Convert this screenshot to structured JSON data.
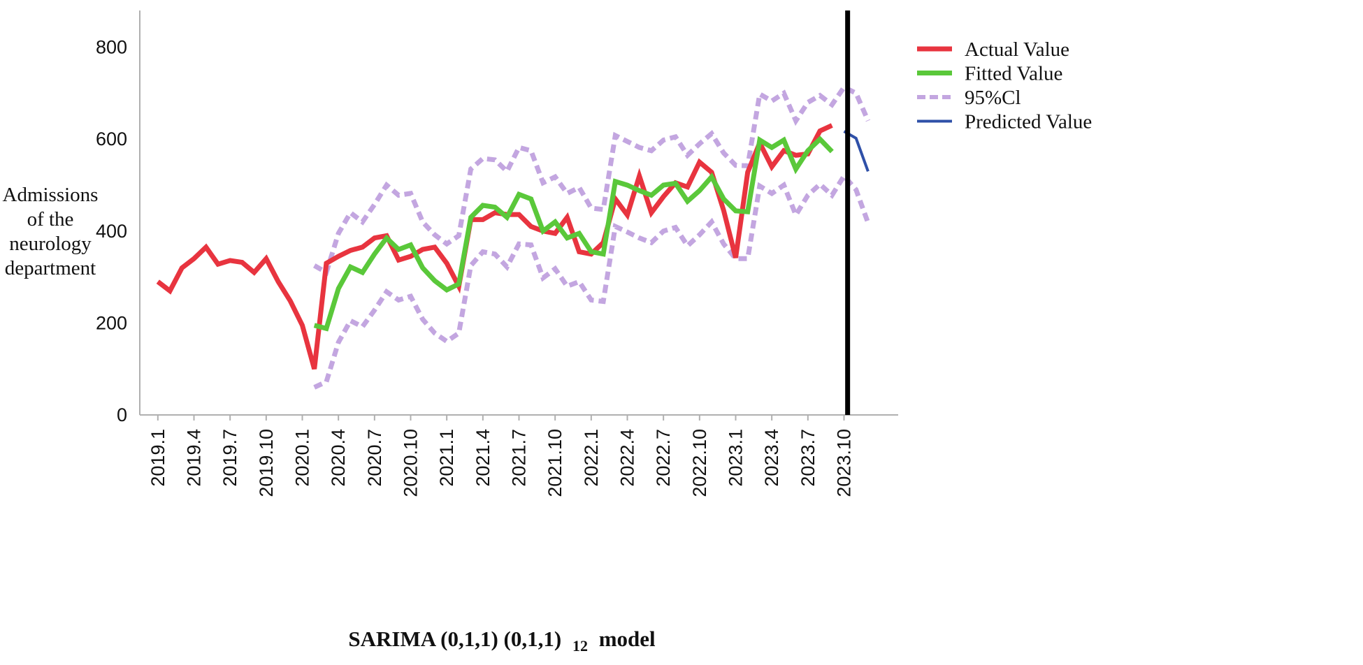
{
  "chart_data": {
    "type": "line",
    "xlabel": "SARIMA (0,1,1) (0,1,1) 12 model",
    "xlabel_parts": {
      "main": "SARIMA (0,1,1) (0,1,1)",
      "sub": "12",
      "tail": "model"
    },
    "ylabel_lines": [
      "Admissions",
      "of the",
      "neurology",
      "department"
    ],
    "ylim": [
      0,
      880
    ],
    "yticks": [
      0,
      200,
      400,
      600,
      800
    ],
    "tick_labels": [
      "2019.1",
      "2019.4",
      "2019.7",
      "2019.10",
      "2020.1",
      "2020.4",
      "2020.7",
      "2020.10",
      "2021.1",
      "2021.4",
      "2021.7",
      "2021.10",
      "2022.1",
      "2022.4",
      "2022.7",
      "2022.10",
      "2023.1",
      "2023.4",
      "2023.7",
      "2023.10"
    ],
    "tick_months": [
      0,
      3,
      6,
      9,
      12,
      15,
      18,
      21,
      24,
      27,
      30,
      33,
      36,
      39,
      42,
      45,
      48,
      51,
      54,
      57
    ],
    "x_range_months": [
      -1.5,
      61.5
    ],
    "forecast_start_month": 57.3,
    "legend_position": "top-right",
    "legend": [
      {
        "label": "Actual Value",
        "color": "#e8343f",
        "style": "solid"
      },
      {
        "label": "Fitted Value",
        "color": "#5ac83a",
        "style": "solid"
      },
      {
        "label": "95%Cl",
        "color": "#c3a6e0",
        "style": "dashed"
      },
      {
        "label": "Predicted Value",
        "color": "#2f50a8",
        "style": "solid"
      }
    ],
    "series": [
      {
        "name": "Actual Value",
        "color": "#e8343f",
        "start_month": 0,
        "values": [
          290,
          270,
          320,
          340,
          365,
          328,
          336,
          332,
          310,
          340,
          290,
          248,
          195,
          100,
          330,
          345,
          358,
          365,
          385,
          390,
          337,
          345,
          360,
          365,
          330,
          280,
          425,
          425,
          440,
          436,
          436,
          410,
          400,
          395,
          430,
          355,
          350,
          375,
          470,
          435,
          520,
          440,
          475,
          505,
          496,
          550,
          528,
          445,
          342,
          528,
          592,
          540,
          575,
          565,
          568,
          618,
          630
        ]
      },
      {
        "name": "Fitted Value",
        "color": "#5ac83a",
        "start_month": 13,
        "values": [
          195,
          188,
          275,
          322,
          310,
          350,
          385,
          360,
          370,
          320,
          292,
          272,
          285,
          430,
          456,
          452,
          430,
          480,
          470,
          400,
          420,
          385,
          395,
          355,
          350,
          508,
          500,
          488,
          478,
          500,
          504,
          465,
          488,
          518,
          470,
          444,
          442,
          598,
          582,
          598,
          535,
          575,
          600,
          573
        ]
      },
      {
        "name": "95%Cl upper",
        "color": "#c3a6e0",
        "start_month": 13,
        "values": [
          325,
          310,
          395,
          440,
          420,
          458,
          500,
          478,
          482,
          420,
          392,
          372,
          390,
          535,
          558,
          555,
          530,
          582,
          575,
          505,
          518,
          482,
          495,
          450,
          447,
          608,
          595,
          582,
          575,
          598,
          605,
          565,
          590,
          612,
          570,
          543,
          542,
          698,
          683,
          700,
          640,
          680,
          695,
          675,
          713,
          700,
          640
        ]
      },
      {
        "name": "95%Cl lower",
        "color": "#c3a6e0",
        "start_month": 13,
        "values": [
          60,
          72,
          158,
          205,
          192,
          228,
          268,
          250,
          258,
          208,
          178,
          160,
          178,
          325,
          355,
          350,
          322,
          372,
          370,
          298,
          318,
          280,
          290,
          250,
          247,
          410,
          398,
          385,
          375,
          400,
          408,
          368,
          392,
          420,
          372,
          340,
          340,
          498,
          482,
          500,
          435,
          478,
          502,
          478,
          520,
          490,
          418
        ]
      },
      {
        "name": "Predicted Value",
        "color": "#2f50a8",
        "start_month": 57,
        "values": [
          617,
          602,
          530
        ]
      }
    ]
  }
}
